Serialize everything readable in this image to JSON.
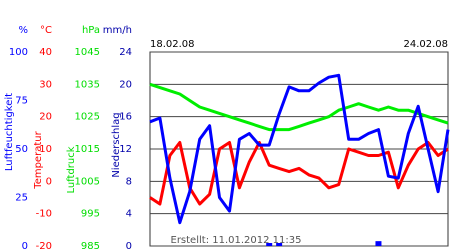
{
  "chart_data": {
    "type": "line",
    "date_labels": [
      "18.02.08",
      "24.02.08"
    ],
    "footer": "Erstellt: 11.01.2012 11:35",
    "grid": true,
    "axes": [
      {
        "unit": "%",
        "label": "Luftfeuchtigkeit",
        "color": "#0000ff",
        "ylim": [
          0,
          100
        ],
        "yticks": [
          0,
          25,
          50,
          75,
          100
        ]
      },
      {
        "unit": "°C",
        "label": "Temperatur",
        "color": "#ff0000",
        "ylim": [
          -20,
          40
        ],
        "yticks": [
          -20,
          -10,
          0,
          10,
          20,
          30,
          40
        ]
      },
      {
        "unit": "hPa",
        "label": "Luftdruck",
        "color": "#00dd00",
        "ylim": [
          985,
          1045
        ],
        "yticks": [
          985,
          995,
          1005,
          1015,
          1025,
          1035,
          1045
        ]
      },
      {
        "unit": "mm/h",
        "label": "Niederschlag",
        "color": "#0000aa",
        "ylim": [
          0,
          24
        ],
        "yticks": [
          0,
          4,
          8,
          12,
          16,
          20,
          24
        ]
      }
    ],
    "series": [
      {
        "axis": 2,
        "color": "#00ee00",
        "values": [
          1035,
          1034,
          1033,
          1032,
          1030,
          1028,
          1027,
          1026,
          1025,
          1024,
          1023,
          1022,
          1021,
          1021,
          1021,
          1022,
          1023,
          1024,
          1025,
          1027,
          1028,
          1029,
          1028,
          1027,
          1028,
          1027,
          1027,
          1026,
          1025,
          1024,
          1023
        ]
      },
      {
        "axis": 1,
        "color": "#ff0000",
        "values": [
          -5,
          -7,
          8,
          12,
          -2,
          -7,
          -4,
          10,
          12,
          -2,
          6,
          12,
          5,
          4,
          3,
          4,
          2,
          1,
          -2,
          -1,
          10,
          9,
          8,
          8,
          9,
          -2,
          5,
          10,
          12,
          8,
          10
        ]
      },
      {
        "axis": 0,
        "color": "#0000ff",
        "values": [
          64,
          66,
          35,
          12,
          28,
          55,
          62,
          25,
          18,
          55,
          58,
          52,
          52,
          68,
          82,
          80,
          80,
          84,
          87,
          88,
          55,
          55,
          58,
          60,
          36,
          35,
          58,
          72,
          50,
          28,
          60
        ]
      },
      {
        "axis": 3,
        "color": "#0000ff",
        "bars": true,
        "values": [
          0,
          0,
          0,
          0,
          0,
          0,
          0,
          0,
          0,
          0,
          0,
          0,
          0.3,
          0.3,
          0,
          0,
          0,
          0,
          0,
          0,
          0,
          0,
          0,
          0.6,
          0,
          0,
          0,
          0,
          0,
          0,
          0
        ]
      }
    ]
  }
}
